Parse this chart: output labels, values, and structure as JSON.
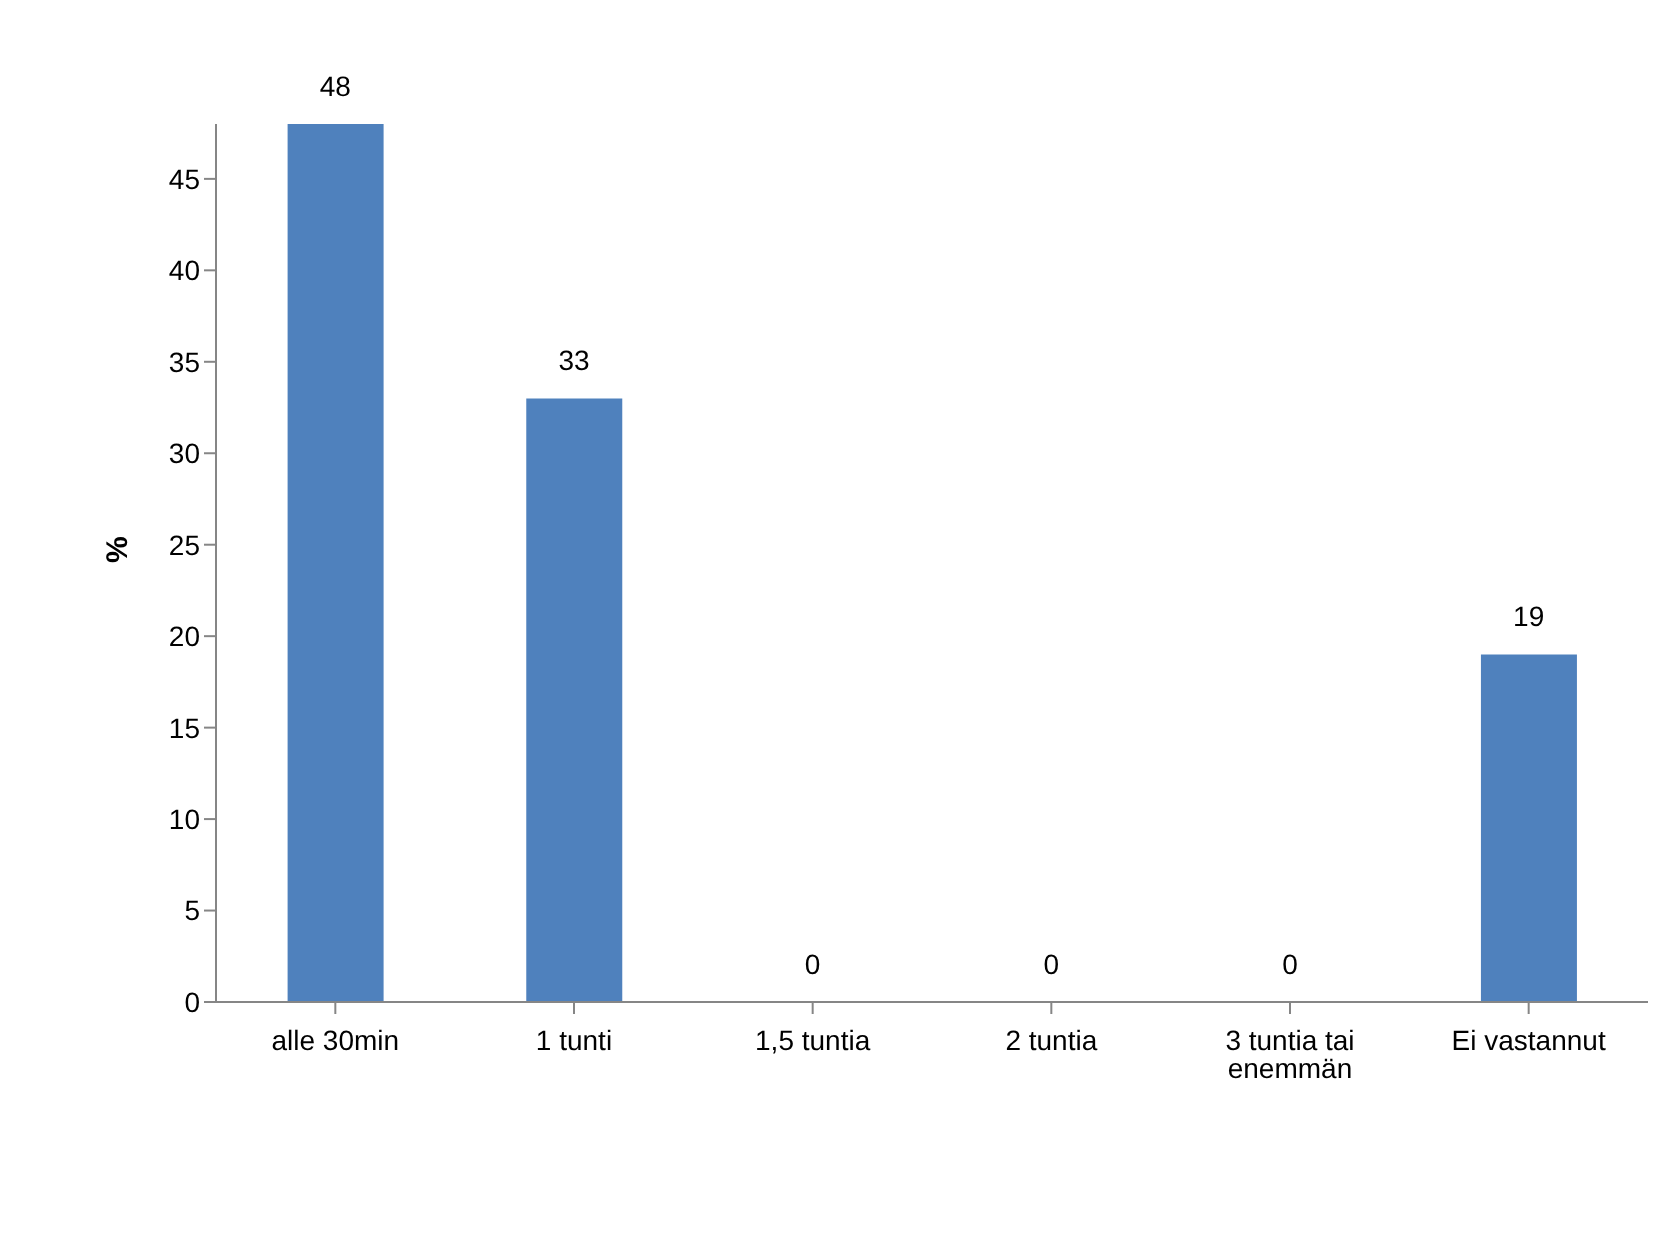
{
  "chart_data": {
    "type": "bar",
    "ylabel": "%",
    "categories": [
      "alle 30min",
      "1 tunti",
      "1,5 tuntia",
      "2 tuntia",
      "3 tuntia tai enemmän",
      "Ei vastannut"
    ],
    "values": [
      48,
      33,
      0,
      0,
      0,
      19
    ],
    "color": "#4f81bd",
    "ylim": [
      0,
      48
    ],
    "yticks": [
      0,
      5,
      10,
      15,
      20,
      25,
      30,
      35,
      40,
      45
    ],
    "grid": false,
    "data_labels": true
  }
}
